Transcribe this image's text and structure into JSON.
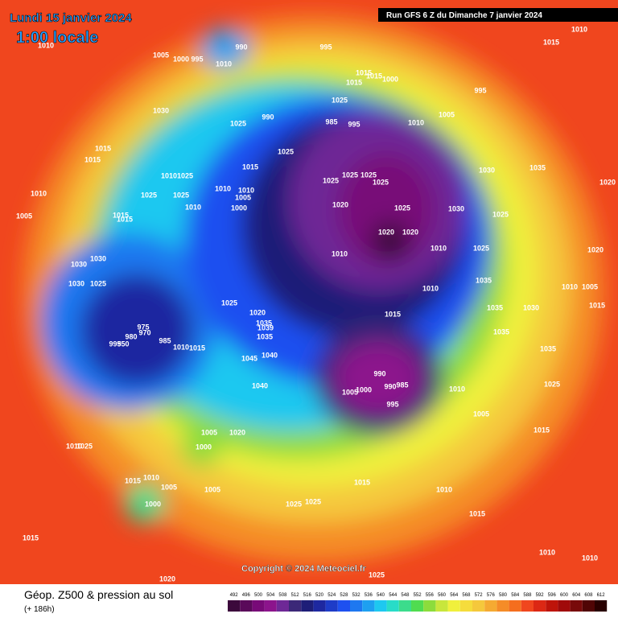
{
  "header": {
    "date": "Lundi 15 janvier 2024",
    "time": "1:00 locale",
    "run": "Run GFS 6 Z du Dimanche 7 janvier 2024"
  },
  "footer": {
    "copyright": "Copyright © 2024 Meteociel.fr",
    "title": "Géop. Z500 & pression au sol",
    "lead": "(+ 186h)"
  },
  "isobar_labels": [
    1010,
    1015,
    995,
    990,
    1010,
    1005,
    1000,
    995,
    1010,
    1015,
    1015,
    1000,
    1015,
    995,
    1025,
    1030,
    990,
    985,
    995,
    1010,
    1005,
    1025,
    1015,
    1015,
    1025,
    1030,
    1035,
    1015,
    1025,
    1025,
    1025,
    1010,
    1025,
    1025,
    1020,
    1010,
    1025,
    1025,
    1010,
    1010,
    1005,
    1030,
    1000,
    1010,
    1020,
    1025,
    1025,
    1005,
    1015,
    1015,
    1020,
    1020,
    1010,
    1025,
    1020,
    1010,
    1030,
    1030,
    1030,
    1025,
    1035,
    1010,
    1010,
    1005,
    1025,
    1015,
    1035,
    1030,
    1015,
    1020,
    1035,
    1039,
    1035,
    975,
    970,
    980,
    985,
    995,
    950,
    1010,
    1015,
    1035,
    1040,
    1045,
    1035,
    990,
    990,
    985,
    1005,
    1000,
    1010,
    1040,
    1025,
    995,
    1005,
    1005,
    1020,
    1000,
    1025,
    1010,
    1015,
    1015,
    1010,
    1005,
    1005,
    1015,
    1010,
    1025,
    1025,
    1000,
    1015,
    1015,
    1010,
    1010,
    1020,
    1025
  ],
  "colorbar": {
    "levels": [
      492,
      496,
      500,
      504,
      508,
      512,
      516,
      520,
      524,
      528,
      532,
      536,
      540,
      544,
      548,
      552,
      556,
      560,
      564,
      568,
      572,
      576,
      580,
      584,
      588,
      592,
      596,
      600,
      604,
      608,
      612
    ],
    "colors": [
      "#3c0a3c",
      "#5a0a5a",
      "#780a78",
      "#8c148c",
      "#6e2896",
      "#3c2878",
      "#1e1e78",
      "#1e28a0",
      "#1e3cc8",
      "#1e50f0",
      "#1e78f0",
      "#1ea0f0",
      "#1ec8f0",
      "#28dcc8",
      "#3cdc8c",
      "#50dc50",
      "#8cdc3c",
      "#c8e63c",
      "#f0f03c",
      "#f5dc3c",
      "#f5c83c",
      "#f5aa32",
      "#f58c28",
      "#f56e1e",
      "#f0461e",
      "#dc2814",
      "#be140a",
      "#a00a0a",
      "#780a0a",
      "#500505",
      "#280000"
    ]
  }
}
